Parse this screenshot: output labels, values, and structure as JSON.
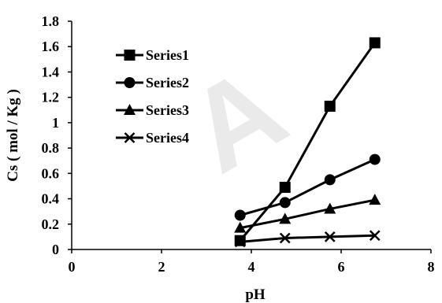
{
  "chart_data": {
    "type": "line",
    "title": "",
    "xlabel": "pH",
    "ylabel": "Cs ( mol / Kg )",
    "xlim": [
      0,
      8
    ],
    "ylim": [
      0,
      1.8
    ],
    "xticks": [
      0,
      2,
      4,
      6,
      8
    ],
    "yticks": [
      0,
      0.2,
      0.4,
      0.6,
      0.8,
      1,
      1.2,
      1.4,
      1.6,
      1.8
    ],
    "grid": false,
    "legend_position": "top-left",
    "series": [
      {
        "name": "Series1",
        "marker": "square",
        "color": "#000000",
        "x": [
          3.75,
          4.75,
          5.75,
          6.75
        ],
        "y": [
          0.07,
          0.49,
          1.13,
          1.63
        ]
      },
      {
        "name": "Series2",
        "marker": "circle",
        "color": "#000000",
        "x": [
          3.75,
          4.75,
          5.75,
          6.75
        ],
        "y": [
          0.27,
          0.37,
          0.55,
          0.71
        ]
      },
      {
        "name": "Series3",
        "marker": "triangle",
        "color": "#000000",
        "x": [
          3.75,
          4.75,
          5.75,
          6.75
        ],
        "y": [
          0.17,
          0.24,
          0.32,
          0.39
        ]
      },
      {
        "name": "Series4",
        "marker": "x",
        "color": "#000000",
        "x": [
          3.75,
          4.75,
          5.75,
          6.75
        ],
        "y": [
          0.06,
          0.09,
          0.1,
          0.11
        ]
      }
    ]
  }
}
